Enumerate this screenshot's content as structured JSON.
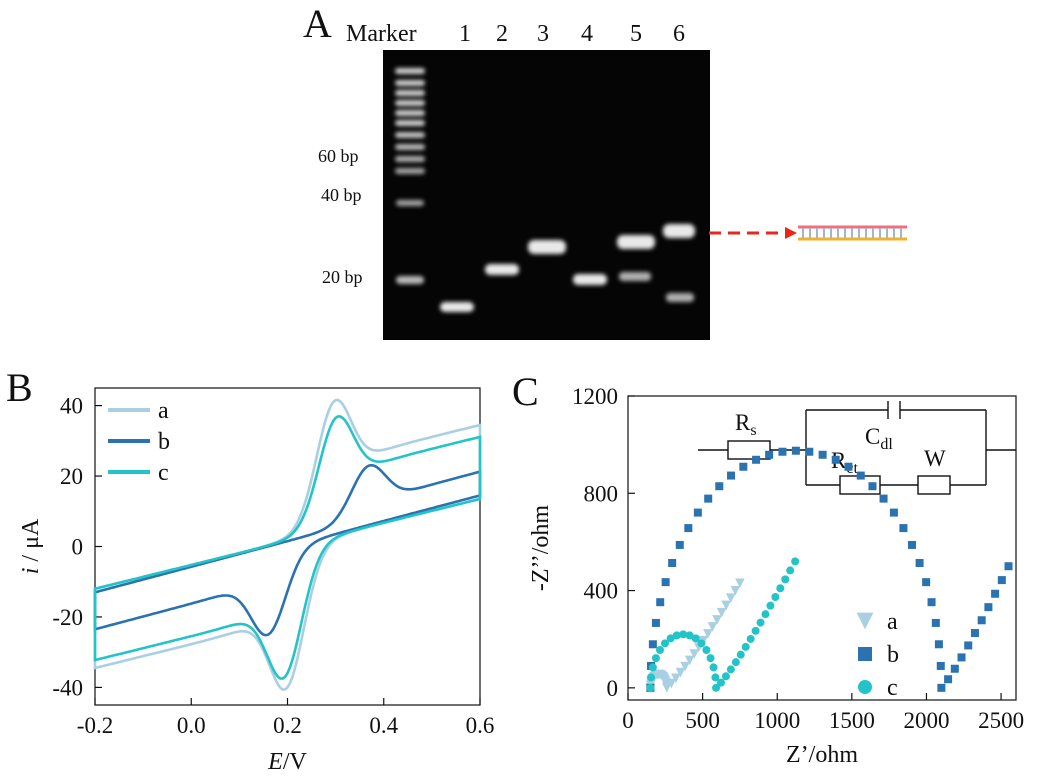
{
  "panel_a": {
    "letter": "A",
    "lanes": [
      "Marker",
      "1",
      "2",
      "3",
      "4",
      "5",
      "6"
    ],
    "size_labels": [
      "60 bp",
      "40 bp",
      "20 bp"
    ],
    "colors": {
      "band": "#e6e6e6",
      "gel": "#050505",
      "arrow": "#e8261e",
      "strand_top": "#f26d7d",
      "strand_bottom": "#f2b12a",
      "rungs": "#9fb7c9"
    }
  },
  "chart_data": [
    {
      "type": "line",
      "panel": "B",
      "xlabel_italic": "E",
      "xlabel_rest": "/V",
      "ylabel_italic": "i",
      "ylabel_rest": " / μA",
      "xlim": [
        -0.2,
        0.6
      ],
      "ylim": [
        -45,
        45
      ],
      "xticks": [
        "-0.2",
        "0.0",
        "0.2",
        "0.4",
        "0.6"
      ],
      "yticks": [
        "-40",
        "-20",
        "0",
        "20",
        "40"
      ],
      "legend_position": "top-left",
      "series": [
        {
          "name": "a",
          "color": "#a9cfe3",
          "Epa": 0.295,
          "Ipa": 41,
          "Epc": 0.2,
          "Ipc": -40,
          "Istart": -12,
          "Iend": 15
        },
        {
          "name": "b",
          "color": "#2a72b0",
          "Epa": 0.37,
          "Ipa": 23,
          "Epc": 0.16,
          "Ipc": -25,
          "Istart": -13,
          "Iend": 16
        },
        {
          "name": "c",
          "color": "#22c4c8",
          "Epa": 0.3,
          "Ipa": 36.5,
          "Epc": 0.195,
          "Ipc": -37,
          "Istart": -12,
          "Iend": 15
        }
      ]
    },
    {
      "type": "scatter",
      "panel": "C",
      "xlabel": "Z’/ohm",
      "ylabel": "-Z’’/ohm",
      "xlim": [
        0,
        2600
      ],
      "ylim": [
        -50,
        1200
      ],
      "xticks": [
        "0",
        "500",
        "1000",
        "1500",
        "2000",
        "2500"
      ],
      "yticks": [
        "0",
        "400",
        "800",
        "1200"
      ],
      "legend_position": "bottom-right",
      "circuit_labels": {
        "rs": "R",
        "rs_sub": "s",
        "cdl": "C",
        "cdl_sub": "dl",
        "rct": "R",
        "rct_sub": "ct",
        "w": "W"
      },
      "series": [
        {
          "name": "a",
          "marker": "triangle",
          "color": "#a9cfe3",
          "Rs": 150,
          "Rct": 110,
          "tailEnd": [
            750,
            430
          ]
        },
        {
          "name": "b",
          "marker": "square",
          "color": "#2a72b0",
          "Rs": 150,
          "Rct": 1950,
          "tailEnd": [
            2550,
            500
          ]
        },
        {
          "name": "c",
          "marker": "circle",
          "color": "#22c4c8",
          "Rs": 150,
          "Rct": 440,
          "tailEnd": [
            1120,
            520
          ]
        }
      ]
    }
  ]
}
